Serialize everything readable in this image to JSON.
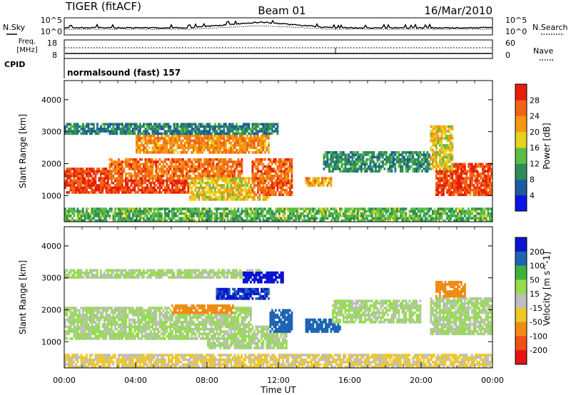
{
  "header": {
    "title": "TIGER (fitACF)",
    "beam": "Beam 01",
    "date": "16/Mar/2010"
  },
  "noise_panel": {
    "left_label": "N.Sky",
    "right_label": "N.Search",
    "tick_top": "10^5",
    "tick_bottom": "10^0"
  },
  "freq_panel": {
    "left_label_1": "Freq.",
    "left_label_2": "[MHz]",
    "left_tick_top": "18",
    "left_tick_bottom": "8",
    "right_label": "Nave",
    "right_tick_top": "60",
    "right_tick_bottom": "0"
  },
  "cpid_panel": {
    "label": "CPID",
    "text": "normalsound (fast) 157"
  },
  "axes": {
    "ylabel": "Slant Range [km]",
    "yticks": [
      "1000",
      "2000",
      "3000",
      "4000"
    ],
    "xlabel": "Time UT",
    "xticks": [
      "00:00",
      "04:00",
      "08:00",
      "12:00",
      "16:00",
      "20:00",
      "00:00"
    ]
  },
  "colorbars": {
    "power": {
      "label": "Power [dB]",
      "ticks": [
        "4",
        "8",
        "12",
        "16",
        "20",
        "24",
        "28"
      ],
      "colors": [
        "#0a14e6",
        "#1e5aa0",
        "#2e8c5a",
        "#5abe46",
        "#e6d21e",
        "#f59614",
        "#f06414",
        "#e61e0a"
      ]
    },
    "velocity": {
      "label": "Velocity [m s^-1]",
      "ticks": [
        "200",
        "100",
        "50",
        "15",
        "-15",
        "-50",
        "-100",
        "-200"
      ],
      "colors": [
        "#0a14d2",
        "#1e64b4",
        "#3cb43c",
        "#96dc50",
        "#bebebe",
        "#f0c828",
        "#f08c14",
        "#f05014",
        "#e61414"
      ]
    }
  },
  "chart_data": [
    {
      "type": "heatmap",
      "title": "Power [dB]",
      "xlabel": "Time UT",
      "ylabel": "Slant Range [km]",
      "xlim": [
        0,
        24
      ],
      "ylim": [
        180,
        4600
      ],
      "clim": [
        0,
        32
      ],
      "x_units": "hours UT",
      "regions": [
        {
          "x": [
            0.0,
            9.0
          ],
          "y": [
            1100,
            1900
          ],
          "value": 27
        },
        {
          "x": [
            2.5,
            10.0
          ],
          "y": [
            1500,
            2200
          ],
          "value": 24
        },
        {
          "x": [
            4.0,
            11.5
          ],
          "y": [
            2300,
            2900
          ],
          "value": 22
        },
        {
          "x": [
            0.0,
            12.0
          ],
          "y": [
            2900,
            3300
          ],
          "value": 8
        },
        {
          "x": [
            7.0,
            11.5
          ],
          "y": [
            850,
            1600
          ],
          "value": 18
        },
        {
          "x": [
            10.5,
            12.8
          ],
          "y": [
            1000,
            2200
          ],
          "value": 25
        },
        {
          "x": [
            13.5,
            15.0
          ],
          "y": [
            1250,
            1600
          ],
          "value": 20
        },
        {
          "x": [
            14.5,
            20.5
          ],
          "y": [
            1700,
            2400
          ],
          "value": 9
        },
        {
          "x": [
            20.8,
            24.0
          ],
          "y": [
            1000,
            2000
          ],
          "value": 27
        },
        {
          "x": [
            20.5,
            21.8
          ],
          "y": [
            1800,
            3200
          ],
          "value": 18
        },
        {
          "x": [
            0.0,
            24.0
          ],
          "y": [
            180,
            600
          ],
          "value": 12
        }
      ]
    },
    {
      "type": "heatmap",
      "title": "Velocity [m s^-1]",
      "xlabel": "Time UT",
      "ylabel": "Slant Range [km]",
      "xlim": [
        0,
        24
      ],
      "ylim": [
        180,
        4600
      ],
      "clim": [
        -200,
        200
      ],
      "x_units": "hours UT",
      "regions": [
        {
          "x": [
            0.0,
            10.5
          ],
          "y": [
            1100,
            2100
          ],
          "value": 0
        },
        {
          "x": [
            0.0,
            11.0
          ],
          "y": [
            3000,
            3300
          ],
          "value": 0
        },
        {
          "x": [
            8.0,
            12.5
          ],
          "y": [
            800,
            1500
          ],
          "value": 0
        },
        {
          "x": [
            6.0,
            9.5
          ],
          "y": [
            1900,
            2200
          ],
          "value": -120
        },
        {
          "x": [
            8.5,
            11.5
          ],
          "y": [
            2300,
            2700
          ],
          "value": 150
        },
        {
          "x": [
            10.0,
            12.3
          ],
          "y": [
            2800,
            3200
          ],
          "value": 180
        },
        {
          "x": [
            11.5,
            12.8
          ],
          "y": [
            1300,
            2000
          ],
          "value": 120
        },
        {
          "x": [
            13.5,
            15.5
          ],
          "y": [
            1250,
            1700
          ],
          "value": 90
        },
        {
          "x": [
            15.0,
            20.0
          ],
          "y": [
            1600,
            2300
          ],
          "value": 0
        },
        {
          "x": [
            20.5,
            24.0
          ],
          "y": [
            1200,
            2400
          ],
          "value": 0
        },
        {
          "x": [
            20.8,
            22.5
          ],
          "y": [
            2400,
            2900
          ],
          "value": -100
        },
        {
          "x": [
            0.0,
            24.0
          ],
          "y": [
            180,
            600
          ],
          "value": -40
        }
      ]
    }
  ]
}
